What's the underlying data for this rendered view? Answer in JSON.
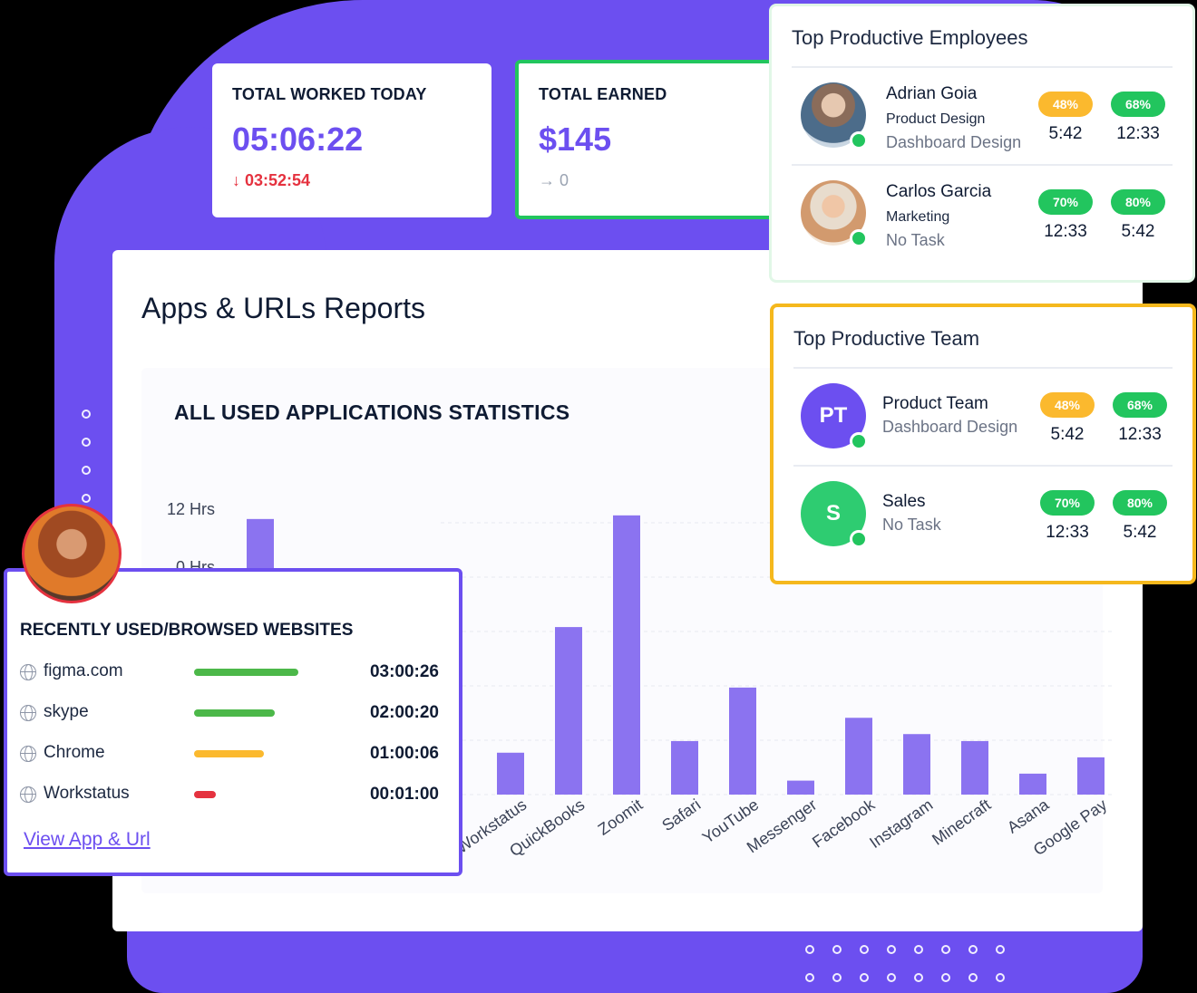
{
  "stats": {
    "worked": {
      "label": "TOTAL WORKED TODAY",
      "value": "05:06:22",
      "delta": "↓ 03:52:54"
    },
    "earned": {
      "label": "TOTAL EARNED",
      "value": "$145",
      "delta": "→ 0"
    }
  },
  "report": {
    "title": "Apps & URLs Reports",
    "chart_title": "ALL USED APPLICATIONS STATISTICS"
  },
  "chart_data": {
    "type": "bar",
    "title": "ALL USED APPLICATIONS STATISTICS",
    "y_tick_labels": [
      "12 Hrs",
      "0 Hrs"
    ],
    "categories": [
      "Workstatus",
      "QuickBooks",
      "Zoomit",
      "Safari",
      "YouTube",
      "Messenger",
      "Facebook",
      "Instagram",
      "Minecraft",
      "Asana",
      "Google Pay"
    ],
    "values": [
      1.8,
      7.2,
      12.0,
      2.3,
      4.6,
      0.6,
      3.3,
      2.6,
      2.3,
      0.9,
      1.6
    ],
    "hidden_first_value": 12.0,
    "ylim": [
      0,
      12.5
    ],
    "bar_color": "#8b73f0",
    "grid": true
  },
  "employees": {
    "title": "Top Productive Employees",
    "items": [
      {
        "name": "Adrian Goia",
        "role": "Product Design",
        "task": "Dashboard Design",
        "m1_pct": "48%",
        "m1_val": "5:42",
        "m2_pct": "68%",
        "m2_val": "12:33"
      },
      {
        "name": "Carlos Garcia",
        "role": "Marketing",
        "task": "No Task",
        "m1_pct": "70%",
        "m1_val": "12:33",
        "m2_pct": "80%",
        "m2_val": "5:42"
      }
    ]
  },
  "team": {
    "title": "Top Productive Team",
    "items": [
      {
        "initials": "PT",
        "name": "Product Team",
        "task": "Dashboard Design",
        "m1_pct": "48%",
        "m1_val": "5:42",
        "m2_pct": "68%",
        "m2_val": "12:33",
        "color": "#6c4ff0"
      },
      {
        "initials": "S",
        "name": "Sales",
        "task": "No Task",
        "m1_pct": "70%",
        "m1_val": "12:33",
        "m2_pct": "80%",
        "m2_val": "5:42",
        "color": "#2ecc71"
      }
    ]
  },
  "sites": {
    "title": "RECENTLY USED/BROWSED WEBSITES",
    "items": [
      {
        "name": "figma.com",
        "time": "03:00:26",
        "fraction": 1.0,
        "color": "#4cb849"
      },
      {
        "name": "skype",
        "time": "02:00:20",
        "fraction": 0.77,
        "color": "#4cb849"
      },
      {
        "name": "Chrome",
        "time": "01:00:06",
        "fraction": 0.67,
        "color": "#fbb92e"
      },
      {
        "name": "Workstatus",
        "time": "00:01:00",
        "fraction": 0.21,
        "color": "#e5323f"
      }
    ],
    "link": "View App & Url"
  }
}
